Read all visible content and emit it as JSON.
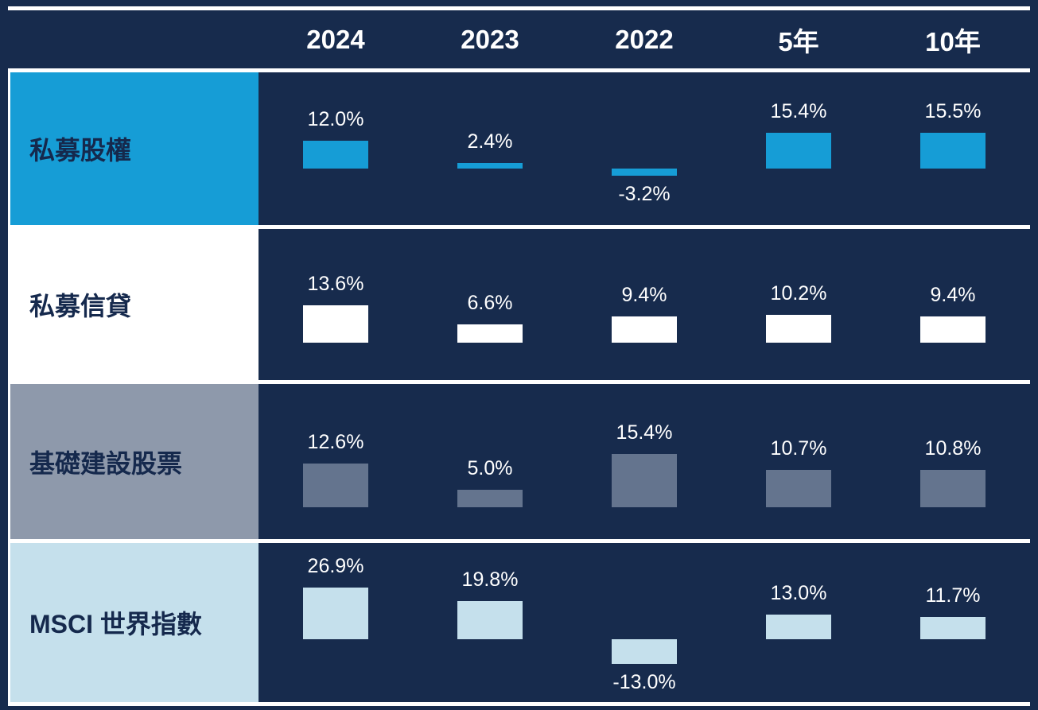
{
  "chart_data": {
    "type": "bar",
    "title": "",
    "unit": "%",
    "columns": [
      "2024",
      "2023",
      "2022",
      "5年",
      "10年"
    ],
    "rows": [
      {
        "label": "私募股權",
        "values": [
          12.0,
          2.4,
          -3.2,
          15.4,
          15.5
        ],
        "value_labels": [
          "12.0%",
          "2.4%",
          "-3.2%",
          "15.4%",
          "15.5%"
        ],
        "label_bg": "#169DD6",
        "bar_color": "#169DD6",
        "label_text_color": "#15294D"
      },
      {
        "label": "私募信貸",
        "values": [
          13.6,
          6.6,
          9.4,
          10.2,
          9.4
        ],
        "value_labels": [
          "13.6%",
          "6.6%",
          "9.4%",
          "10.2%",
          "9.4%"
        ],
        "label_bg": "#FFFFFF",
        "bar_color": "#FFFFFF",
        "label_text_color": "#15294D"
      },
      {
        "label": "基礎建設股票",
        "values": [
          12.6,
          5.0,
          15.4,
          10.7,
          10.8
        ],
        "value_labels": [
          "12.6%",
          "5.0%",
          "15.4%",
          "10.7%",
          "10.8%"
        ],
        "label_bg": "#8E99AB",
        "bar_color": "#64748E",
        "label_text_color": "#15294D"
      },
      {
        "label": "MSCI 世界指數",
        "values": [
          26.9,
          19.8,
          -13.0,
          13.0,
          11.7
        ],
        "value_labels": [
          "26.9%",
          "19.8%",
          "-13.0%",
          "13.0%",
          "11.7%"
        ],
        "label_bg": "#C5E0EC",
        "bar_color": "#C5E0EC",
        "label_text_color": "#15294D"
      }
    ],
    "layout_hints": {
      "background_color": "#172B4D",
      "divider_color": "#FFFFFF",
      "header_text_color": "#FFFFFF",
      "value_label_color": "#FFFFFF",
      "grid": "white horizontal row dividers, no axes",
      "legend": "none",
      "negative_value_labels_below_bars": true
    }
  }
}
